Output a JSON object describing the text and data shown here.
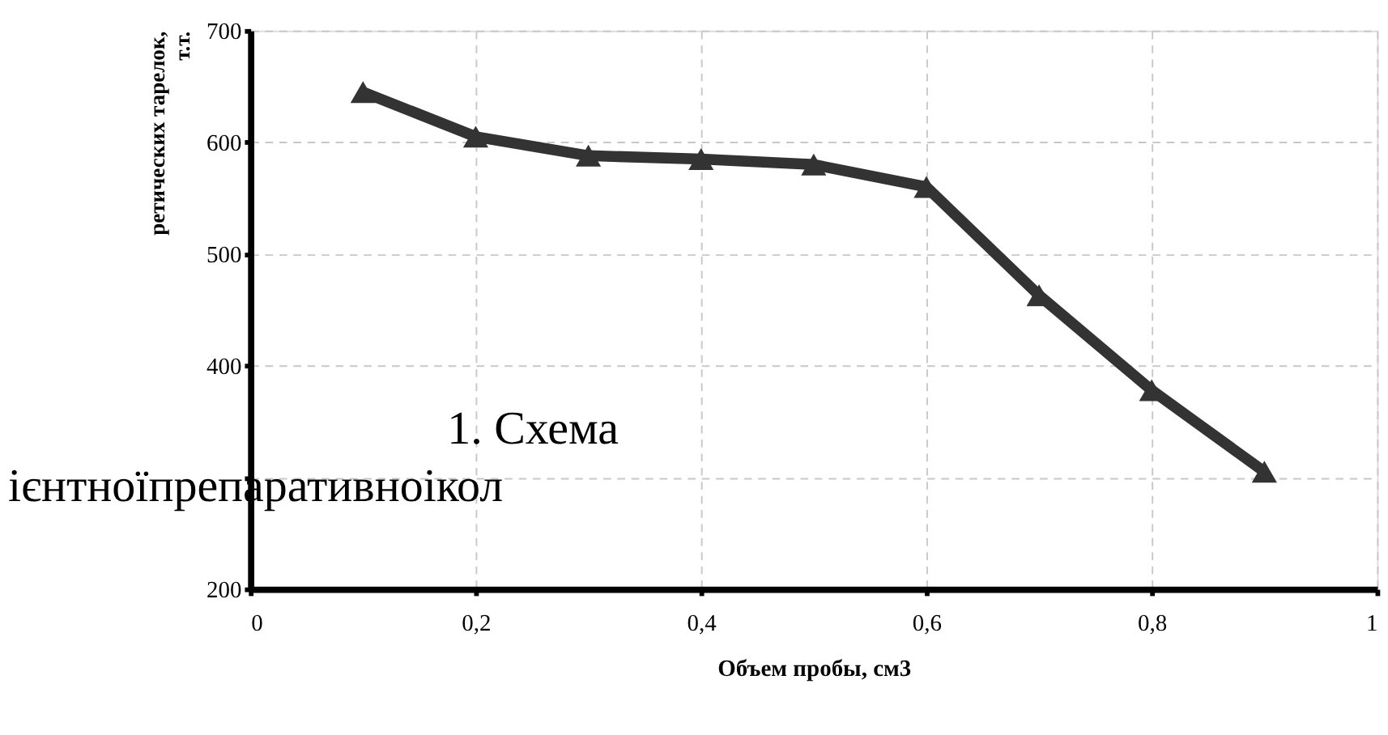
{
  "chart_data": {
    "type": "line",
    "xlabel": "Объем пробы, см3",
    "ylabel": "ретических тарелок, т.т.",
    "x": [
      0.1,
      0.2,
      0.3,
      0.4,
      0.5,
      0.6,
      0.7,
      0.8,
      0.9
    ],
    "series": [
      {
        "color": "#333333",
        "values": [
          645,
          605,
          588,
          585,
          580,
          560,
          463,
          378,
          305
        ]
      }
    ],
    "xlim": [
      0,
      1
    ],
    "xticks": [
      0,
      {
        "value": 0.2,
        "label": "0,2"
      },
      {
        "value": 0.4,
        "label": "0,4"
      },
      {
        "value": 0.6,
        "label": "0,6"
      },
      {
        "value": 0.8,
        "label": "0,8"
      },
      1
    ],
    "ylim": [
      200,
      700
    ],
    "yticks": [
      200,
      {
        "value": 300,
        "label": null
      },
      400,
      500,
      600,
      700
    ],
    "grid": true,
    "marker": "triangle",
    "line_style": "solid",
    "legend": false,
    "annotations": [
      "1.          Схема",
      "ієнтноїпрепаративноікол"
    ]
  }
}
